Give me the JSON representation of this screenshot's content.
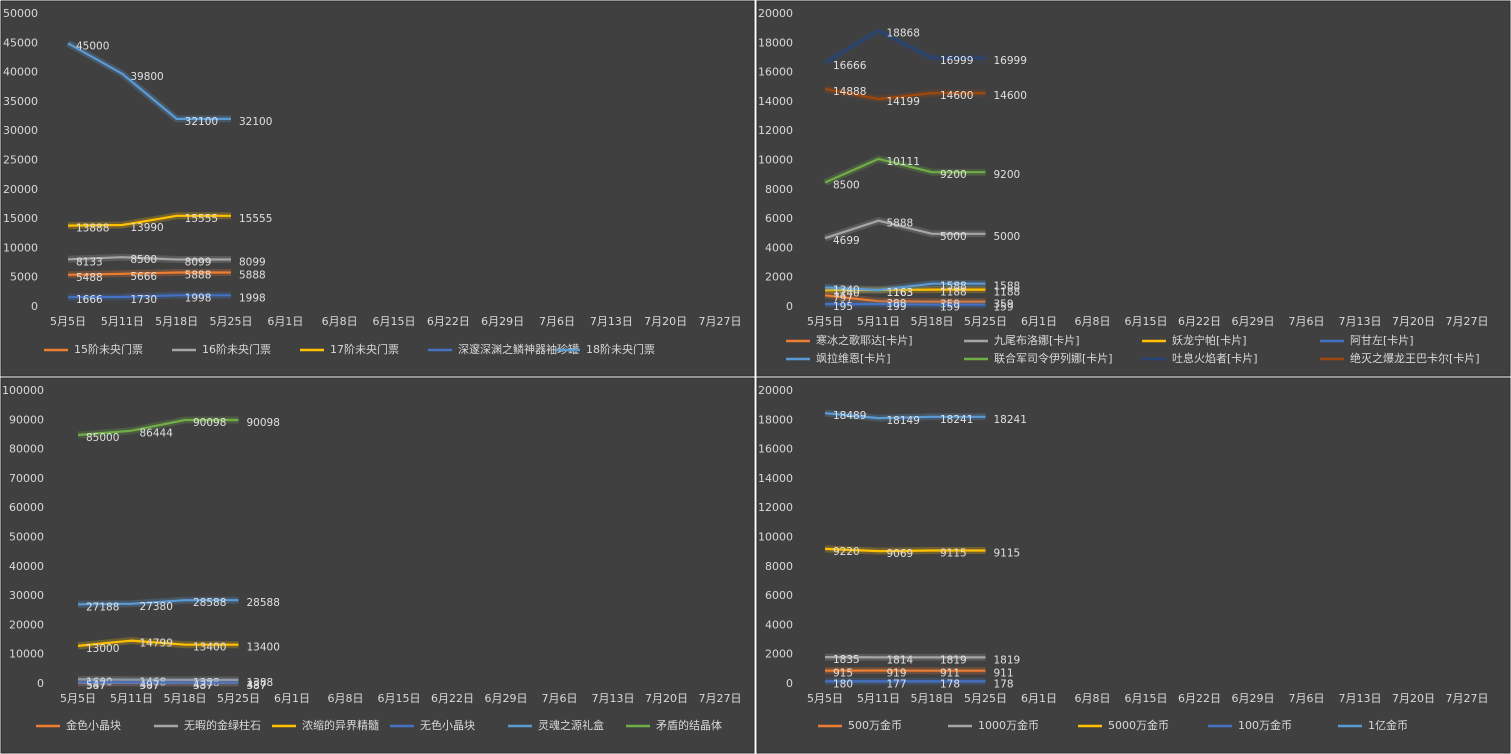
{
  "chart_data": [
    {
      "type": "line",
      "categories": [
        "5月5日",
        "5月11日",
        "5月18日",
        "5月25日",
        "6月1日",
        "6月8日",
        "6月15日",
        "6月22日",
        "6月29日",
        "7月6日",
        "7月13日",
        "7月20日",
        "7月27日"
      ],
      "ylim": [
        0,
        50000
      ],
      "yticks": [
        0,
        5000,
        10000,
        15000,
        20000,
        25000,
        30000,
        35000,
        40000,
        45000,
        50000
      ],
      "legend": "bottom",
      "series": [
        {
          "name": "15阶未央门票",
          "color": "#ed7d31",
          "values": [
            5488,
            5666,
            5888,
            5888,
            null,
            null,
            null,
            null,
            null,
            null,
            null,
            null,
            null
          ]
        },
        {
          "name": "16阶未央门票",
          "color": "#a5a5a5",
          "values": [
            8133,
            8500,
            8099,
            8099,
            null,
            null,
            null,
            null,
            null,
            null,
            null,
            null,
            null
          ]
        },
        {
          "name": "17阶未央门票",
          "color": "#ffc000",
          "values": [
            13888,
            13990,
            15555,
            15555,
            null,
            null,
            null,
            null,
            null,
            null,
            null,
            null,
            null
          ]
        },
        {
          "name": "深邃深渊之鳞神器袖珍罐",
          "color": "#4472c4",
          "values": [
            1666,
            1730,
            1998,
            1998,
            null,
            null,
            null,
            null,
            null,
            null,
            null,
            null,
            null
          ]
        },
        {
          "name": "18阶未央门票",
          "color": "#5b9bd5",
          "values": [
            45000,
            39800,
            32100,
            32100,
            null,
            null,
            null,
            null,
            null,
            null,
            null,
            null,
            null
          ]
        }
      ]
    },
    {
      "type": "line",
      "categories": [
        "5月5日",
        "5月11日",
        "5月18日",
        "5月25日",
        "6月1日",
        "6月8日",
        "6月15日",
        "6月22日",
        "6月29日",
        "7月6日",
        "7月13日",
        "7月20日",
        "7月27日"
      ],
      "ylim": [
        0,
        20000
      ],
      "yticks": [
        0,
        2000,
        4000,
        6000,
        8000,
        10000,
        12000,
        14000,
        16000,
        18000,
        20000
      ],
      "legend": "bottom",
      "series": [
        {
          "name": "寒冰之歌耶达[卡片]",
          "color": "#ed7d31",
          "values": [
            797,
            399,
            359,
            359,
            null,
            null,
            null,
            null,
            null,
            null,
            null,
            null,
            null
          ]
        },
        {
          "name": "九尾布洛娜[卡片]",
          "color": "#a5a5a5",
          "values": [
            4699,
            5888,
            5000,
            5000,
            null,
            null,
            null,
            null,
            null,
            null,
            null,
            null,
            null
          ]
        },
        {
          "name": "妖龙宁帕[卡片]",
          "color": "#ffc000",
          "values": [
            1140,
            1163,
            1188,
            1188,
            null,
            null,
            null,
            null,
            null,
            null,
            null,
            null,
            null
          ]
        },
        {
          "name": "阿甘左[卡片]",
          "color": "#4472c4",
          "values": [
            195,
            199,
            159,
            159,
            null,
            null,
            null,
            null,
            null,
            null,
            null,
            null,
            null
          ]
        },
        {
          "name": "飒拉维恩[卡片]",
          "color": "#5b9bd5",
          "values": [
            1340,
            1163,
            1588,
            1588,
            null,
            null,
            null,
            null,
            null,
            null,
            null,
            null,
            null
          ]
        },
        {
          "name": "联合军司令伊列娜[卡片]",
          "color": "#70ad47",
          "values": [
            8500,
            10111,
            9200,
            9200,
            null,
            null,
            null,
            null,
            null,
            null,
            null,
            null,
            null
          ]
        },
        {
          "name": "吐息火焰者[卡片]",
          "color": "#264478",
          "values": [
            16666,
            18868,
            16999,
            16999,
            null,
            null,
            null,
            null,
            null,
            null,
            null,
            null,
            null
          ]
        },
        {
          "name": "绝灭之爆龙王巴卡尔[卡片]",
          "color": "#9e480e",
          "values": [
            14888,
            14199,
            14600,
            14600,
            null,
            null,
            null,
            null,
            null,
            null,
            null,
            null,
            null
          ]
        }
      ]
    },
    {
      "type": "line",
      "categories": [
        "5月5日",
        "5月11日",
        "5月18日",
        "5月25日",
        "6月1日",
        "6月8日",
        "6月15日",
        "6月22日",
        "6月29日",
        "7月6日",
        "7月13日",
        "7月20日",
        "7月27日"
      ],
      "ylim": [
        0,
        100000
      ],
      "yticks": [
        0,
        10000,
        20000,
        30000,
        40000,
        50000,
        60000,
        70000,
        80000,
        90000,
        100000
      ],
      "legend": "bottom",
      "series": [
        {
          "name": "金色小晶块",
          "color": "#ed7d31",
          "values": [
            387,
            367,
            387,
            387,
            null,
            null,
            null,
            null,
            null,
            null,
            null,
            null,
            null
          ]
        },
        {
          "name": "无暇的金绿柱石",
          "color": "#a5a5a5",
          "values": [
            1600,
            1468,
            1388,
            1388,
            null,
            null,
            null,
            null,
            null,
            null,
            null,
            null,
            null
          ]
        },
        {
          "name": "浓缩的异界精髓",
          "color": "#ffc000",
          "values": [
            13000,
            14799,
            13400,
            13400,
            null,
            null,
            null,
            null,
            null,
            null,
            null,
            null,
            null
          ]
        },
        {
          "name": "无色小晶块",
          "color": "#4472c4",
          "values": [
            547,
            497,
            437,
            437,
            null,
            null,
            null,
            null,
            null,
            null,
            null,
            null,
            null
          ]
        },
        {
          "name": "灵魂之源礼盒",
          "color": "#5b9bd5",
          "values": [
            27188,
            27380,
            28588,
            28588,
            null,
            null,
            null,
            null,
            null,
            null,
            null,
            null,
            null
          ]
        },
        {
          "name": "矛盾的结晶体",
          "color": "#70ad47",
          "values": [
            85000,
            86444,
            90098,
            90098,
            null,
            null,
            null,
            null,
            null,
            null,
            null,
            null,
            null
          ]
        }
      ]
    },
    {
      "type": "line",
      "categories": [
        "5月5日",
        "5月11日",
        "5月18日",
        "5月25日",
        "6月1日",
        "6月8日",
        "6月15日",
        "6月22日",
        "6月29日",
        "7月6日",
        "7月13日",
        "7月20日",
        "7月27日"
      ],
      "ylim": [
        0,
        20000
      ],
      "yticks": [
        0,
        2000,
        4000,
        6000,
        8000,
        10000,
        12000,
        14000,
        16000,
        18000,
        20000
      ],
      "legend": "bottom",
      "series": [
        {
          "name": "500万金币",
          "color": "#ed7d31",
          "values": [
            915,
            919,
            911,
            911,
            null,
            null,
            null,
            null,
            null,
            null,
            null,
            null,
            null
          ]
        },
        {
          "name": "1000万金币",
          "color": "#a5a5a5",
          "values": [
            1835,
            1814,
            1819,
            1819,
            null,
            null,
            null,
            null,
            null,
            null,
            null,
            null,
            null
          ]
        },
        {
          "name": "5000万金币",
          "color": "#ffc000",
          "values": [
            9220,
            9069,
            9115,
            9115,
            null,
            null,
            null,
            null,
            null,
            null,
            null,
            null,
            null
          ]
        },
        {
          "name": "100万金币",
          "color": "#4472c4",
          "values": [
            180,
            177,
            178,
            178,
            null,
            null,
            null,
            null,
            null,
            null,
            null,
            null,
            null
          ]
        },
        {
          "name": "1亿金币",
          "color": "#5b9bd5",
          "values": [
            18489,
            18149,
            18241,
            18241,
            null,
            null,
            null,
            null,
            null,
            null,
            null,
            null,
            null
          ]
        }
      ]
    }
  ]
}
